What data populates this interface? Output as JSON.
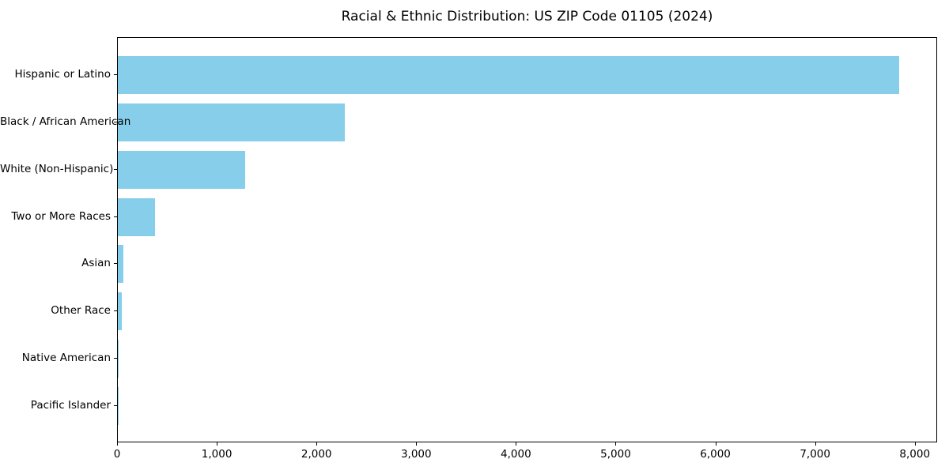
{
  "chart_data": {
    "type": "bar",
    "orientation": "horizontal",
    "title": "Racial & Ethnic Distribution: US ZIP Code 01105 (2024)",
    "categories": [
      "Hispanic or Latino",
      "Black / African American",
      "White (Non-Hispanic)",
      "Two or More Races",
      "Asian",
      "Other Race",
      "Native American",
      "Pacific Islander"
    ],
    "values": [
      7835,
      2280,
      1273,
      369,
      56,
      40,
      6,
      2
    ],
    "bar_color": "#87CEEB",
    "xlabel": "",
    "ylabel": "",
    "xlim": [
      0,
      8224
    ],
    "xticks": [
      0,
      1000,
      2000,
      3000,
      4000,
      5000,
      6000,
      7000,
      8000
    ],
    "xtick_labels": [
      "0",
      "1,000",
      "2,000",
      "3,000",
      "4,000",
      "5,000",
      "6,000",
      "7,000",
      "8,000"
    ],
    "grid": false,
    "legend": null,
    "background_color": "#ffffff",
    "spine_color": "#000000"
  }
}
